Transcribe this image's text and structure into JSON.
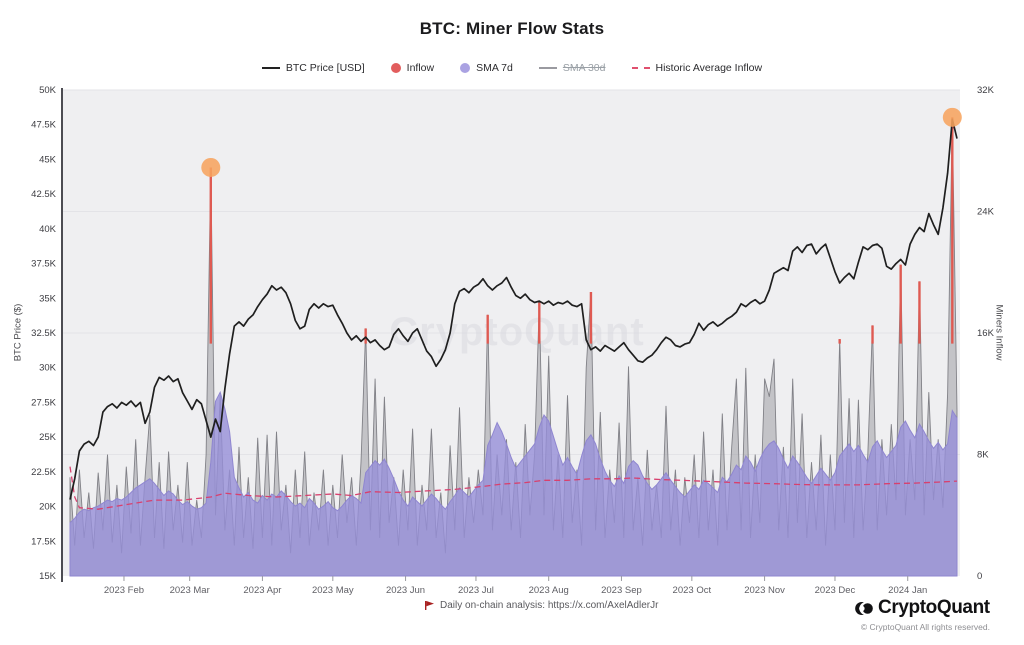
{
  "title": "BTC: Miner Flow Stats",
  "legend": {
    "items": [
      {
        "label": "BTC Price [USD]",
        "swatch": "line",
        "color": "#222222",
        "disabled": false
      },
      {
        "label": "Inflow",
        "swatch": "circle",
        "color": "#e25d5d",
        "disabled": false
      },
      {
        "label": "SMA 7d",
        "swatch": "circle",
        "color": "#aaa2e2",
        "disabled": false
      },
      {
        "label": "SMA 30d",
        "swatch": "line",
        "color": "#9a9aa0",
        "disabled": true
      },
      {
        "label": "Historic Average Inflow",
        "swatch": "dash",
        "color": "#e0506e",
        "disabled": false
      }
    ]
  },
  "watermark": "CryptoQuant",
  "left_axis": {
    "title": "BTC Price ($)",
    "min": 15,
    "max": 50,
    "tick_step": 2.5,
    "tick_labels": [
      "15K",
      "17.5K",
      "20K",
      "22.5K",
      "25K",
      "27.5K",
      "30K",
      "32.5K",
      "35K",
      "37.5K",
      "40K",
      "42.5K",
      "45K",
      "47.5K",
      "50K"
    ]
  },
  "right_axis": {
    "title": "Miners Inflow",
    "min": 0,
    "max": 32,
    "tick_values": [
      0,
      8,
      16,
      24,
      32
    ],
    "tick_labels": [
      "0",
      "8K",
      "16K",
      "24K",
      "32K"
    ]
  },
  "x_axis": {
    "start_date": "2023-01-09",
    "step_days": 2,
    "total_days": 378,
    "month_ticks": [
      {
        "label": "2023 Feb",
        "day": 23
      },
      {
        "label": "2023 Mar",
        "day": 51
      },
      {
        "label": "2023 Apr",
        "day": 82
      },
      {
        "label": "2023 May",
        "day": 112
      },
      {
        "label": "2023 Jun",
        "day": 143
      },
      {
        "label": "2023 Jul",
        "day": 173
      },
      {
        "label": "2023 Aug",
        "day": 204
      },
      {
        "label": "2023 Sep",
        "day": 235
      },
      {
        "label": "2023 Oct",
        "day": 265
      },
      {
        "label": "2023 Nov",
        "day": 296
      },
      {
        "label": "2023 Dec",
        "day": 326
      },
      {
        "label": "2024 Jan",
        "day": 357
      }
    ]
  },
  "footer": {
    "note": "Daily on-chain analysis: https://x.com/AxelAdlerJr",
    "note_icon": "red-flag",
    "brand": "CryptoQuant",
    "copyright": "© CryptoQuant All rights reserved."
  },
  "chart_data": {
    "type": "line+area",
    "plot_bg": "#efeff1",
    "grid_color": "#e3e3e7",
    "red_threshold": 15.3,
    "series": [
      {
        "name": "BTC Price [USD]",
        "type": "line",
        "axis": "left",
        "unit": "K USD",
        "color": "#1f1f1f",
        "values": [
          20.5,
          22.0,
          24.0,
          24.5,
          24.7,
          24.4,
          25.0,
          26.8,
          27.2,
          27.4,
          27.1,
          27.5,
          27.3,
          27.6,
          27.2,
          27.5,
          26.0,
          26.8,
          28.6,
          29.3,
          29.1,
          29.4,
          29.0,
          29.2,
          28.2,
          27.6,
          27.0,
          27.7,
          27.4,
          26.2,
          25.0,
          26.3,
          25.4,
          28.5,
          31.0,
          33.0,
          33.3,
          33.0,
          33.5,
          33.8,
          34.4,
          34.9,
          35.3,
          35.9,
          35.6,
          35.8,
          35.4,
          34.6,
          33.4,
          32.8,
          33.0,
          34.2,
          34.6,
          34.3,
          34.6,
          34.4,
          34.5,
          33.8,
          33.2,
          32.5,
          32.0,
          32.3,
          31.9,
          32.2,
          31.8,
          32.0,
          31.6,
          31.3,
          31.5,
          32.4,
          32.8,
          32.3,
          31.9,
          32.5,
          32.8,
          32.0,
          31.2,
          30.8,
          30.1,
          30.6,
          31.3,
          32.5,
          34.6,
          35.5,
          35.7,
          35.4,
          35.8,
          36.0,
          36.4,
          35.9,
          35.6,
          35.9,
          36.1,
          36.5,
          35.8,
          35.2,
          35.0,
          35.3,
          34.9,
          34.7,
          34.8,
          34.6,
          34.8,
          34.5,
          34.7,
          34.6,
          34.8,
          34.5,
          34.4,
          34.6,
          32.0,
          31.3,
          31.5,
          31.2,
          31.6,
          31.4,
          31.2,
          31.5,
          31.8,
          31.3,
          30.9,
          30.5,
          30.4,
          30.7,
          30.9,
          31.3,
          31.8,
          32.2,
          32.0,
          31.6,
          31.5,
          31.7,
          31.8,
          32.4,
          33.2,
          32.7,
          33.1,
          33.3,
          33.0,
          33.2,
          33.5,
          33.7,
          34.0,
          34.6,
          34.4,
          34.7,
          34.9,
          34.6,
          34.8,
          35.6,
          36.8,
          37.0,
          37.2,
          37.0,
          38.4,
          38.7,
          38.3,
          38.8,
          38.9,
          38.2,
          38.6,
          38.9,
          37.9,
          36.9,
          36.1,
          36.5,
          36.8,
          36.4,
          37.6,
          38.7,
          38.5,
          38.8,
          38.9,
          38.6,
          37.3,
          37.1,
          37.5,
          37.8,
          37.4,
          38.9,
          39.6,
          40.1,
          39.8,
          41.1,
          40.3,
          39.6,
          41.5,
          44.0,
          47.9,
          46.5
        ]
      },
      {
        "name": "Inflow",
        "type": "area",
        "axis": "right",
        "unit": "K BTC",
        "fill": "rgba(158,158,164,0.55)",
        "line": "#818187",
        "red_color": "#df5a52",
        "values": [
          6.5,
          2.0,
          7.0,
          2.5,
          5.5,
          1.8,
          6.8,
          3.0,
          8.0,
          2.2,
          6.0,
          1.5,
          7.2,
          2.8,
          9.0,
          2.0,
          6.5,
          10.6,
          2.5,
          7.5,
          1.8,
          8.2,
          3.0,
          6.0,
          2.2,
          7.5,
          2.0,
          5.0,
          2.5,
          8.0,
          26.9,
          4.0,
          11.9,
          3.0,
          7.0,
          2.0,
          8.5,
          2.5,
          6.5,
          1.8,
          9.1,
          2.5,
          9.3,
          2.0,
          9.5,
          3.0,
          6.0,
          1.5,
          7.0,
          2.5,
          8.2,
          2.0,
          5.5,
          3.0,
          7.0,
          2.0,
          6.0,
          2.5,
          8.0,
          3.5,
          6.5,
          2.0,
          7.5,
          16.3,
          3.0,
          13.0,
          2.5,
          11.8,
          3.5,
          6.5,
          2.0,
          7.0,
          3.0,
          9.7,
          2.0,
          6.0,
          3.0,
          9.7,
          2.5,
          5.5,
          1.5,
          8.6,
          3.0,
          11.1,
          2.5,
          6.5,
          3.5,
          7.0,
          4.0,
          17.2,
          3.0,
          8.0,
          4.0,
          9.0,
          3.0,
          7.5,
          2.5,
          10.0,
          4.0,
          8.0,
          18.0,
          4.0,
          14.5,
          3.0,
          8.0,
          2.5,
          11.9,
          3.5,
          7.0,
          2.0,
          13.7,
          18.7,
          3.0,
          10.8,
          2.5,
          7.0,
          3.5,
          10.1,
          2.5,
          13.8,
          3.0,
          6.5,
          2.0,
          8.3,
          3.0,
          6.0,
          2.5,
          11.2,
          3.0,
          7.0,
          2.0,
          6.5,
          3.5,
          8.0,
          2.5,
          9.5,
          3.0,
          7.0,
          2.0,
          10.7,
          3.0,
          8.5,
          13.0,
          3.0,
          13.7,
          2.5,
          8.0,
          3.5,
          13.0,
          11.8,
          14.3,
          3.0,
          8.5,
          2.5,
          13.0,
          3.5,
          10.7,
          2.5,
          7.5,
          3.0,
          9.3,
          2.0,
          8.0,
          3.0,
          15.6,
          3.5,
          11.7,
          2.5,
          11.6,
          3.0,
          8.0,
          16.5,
          3.0,
          9.0,
          4.0,
          10.0,
          5.0,
          20.5,
          4.0,
          9.0,
          5.0,
          19.4,
          4.0,
          12.1,
          5.0,
          9.0,
          4.5,
          12.0,
          30.2,
          10.9
        ]
      },
      {
        "name": "SMA 7d",
        "type": "area",
        "axis": "right",
        "unit": "K BTC",
        "fill": "rgba(150,142,216,0.8)",
        "line": "#8f86d0",
        "values": [
          3.5,
          3.8,
          4.2,
          4.4,
          4.3,
          4.5,
          4.6,
          4.8,
          5.0,
          4.9,
          5.1,
          5.0,
          5.2,
          5.5,
          5.8,
          6.0,
          6.2,
          6.4,
          6.1,
          5.7,
          5.3,
          5.6,
          5.4,
          5.0,
          4.7,
          4.9,
          4.6,
          4.4,
          4.5,
          4.8,
          7.5,
          11.5,
          12.1,
          11.0,
          9.5,
          6.5,
          5.8,
          5.2,
          5.5,
          5.0,
          4.8,
          5.3,
          5.0,
          5.4,
          5.2,
          5.6,
          5.3,
          4.9,
          4.6,
          4.8,
          4.5,
          5.1,
          4.8,
          4.4,
          4.6,
          4.9,
          4.5,
          4.3,
          4.6,
          5.0,
          5.3,
          5.1,
          4.8,
          6.8,
          7.2,
          7.6,
          7.3,
          7.7,
          7.1,
          6.4,
          5.6,
          5.0,
          4.6,
          5.2,
          4.9,
          4.6,
          5.0,
          5.4,
          5.1,
          4.7,
          4.4,
          4.9,
          5.3,
          5.8,
          5.5,
          5.2,
          5.6,
          6.0,
          6.3,
          8.6,
          9.3,
          10.1,
          9.5,
          8.7,
          7.8,
          7.1,
          7.5,
          7.9,
          8.3,
          8.7,
          9.8,
          10.6,
          10.2,
          9.2,
          8.2,
          7.3,
          7.8,
          7.2,
          6.7,
          7.9,
          8.9,
          9.3,
          8.7,
          7.7,
          6.9,
          6.3,
          5.9,
          6.6,
          6.1,
          7.2,
          7.6,
          7.3,
          6.6,
          6.1,
          5.7,
          6.0,
          6.4,
          6.8,
          6.3,
          5.9,
          5.5,
          5.2,
          5.6,
          6.0,
          5.7,
          6.3,
          6.1,
          5.8,
          5.5,
          6.5,
          6.2,
          6.7,
          7.3,
          7.0,
          7.9,
          7.5,
          6.9,
          7.7,
          8.3,
          8.7,
          8.9,
          8.4,
          7.7,
          7.1,
          7.9,
          7.5,
          7.0,
          6.5,
          6.1,
          6.6,
          7.1,
          6.7,
          6.3,
          6.8,
          7.9,
          8.3,
          8.7,
          8.2,
          8.6,
          8.0,
          7.5,
          8.5,
          8.9,
          8.3,
          7.8,
          8.2,
          8.6,
          9.8,
          10.2,
          9.6,
          9.1,
          10.0,
          9.5,
          8.9,
          8.4,
          8.8,
          8.3,
          8.7,
          10.9,
          10.4
        ]
      },
      {
        "name": "Historic Average Inflow",
        "type": "dashed-line",
        "axis": "right",
        "unit": "K BTC",
        "color": "#d8406e",
        "keypoints": [
          [
            0,
            7.2
          ],
          [
            1,
            5.2
          ],
          [
            2,
            4.5
          ],
          [
            6,
            4.4
          ],
          [
            10,
            4.6
          ],
          [
            14,
            4.8
          ],
          [
            18,
            5.0
          ],
          [
            24,
            5.0
          ],
          [
            30,
            5.2
          ],
          [
            33,
            5.45
          ],
          [
            38,
            5.3
          ],
          [
            44,
            5.2
          ],
          [
            50,
            5.3
          ],
          [
            56,
            5.4
          ],
          [
            60,
            5.3
          ],
          [
            64,
            5.55
          ],
          [
            70,
            5.5
          ],
          [
            76,
            5.6
          ],
          [
            82,
            5.7
          ],
          [
            88,
            5.9
          ],
          [
            92,
            6.05
          ],
          [
            97,
            6.15
          ],
          [
            101,
            6.3
          ],
          [
            106,
            6.3
          ],
          [
            111,
            6.4
          ],
          [
            116,
            6.4
          ],
          [
            120,
            6.45
          ],
          [
            126,
            6.35
          ],
          [
            132,
            6.28
          ],
          [
            138,
            6.2
          ],
          [
            144,
            6.12
          ],
          [
            150,
            6.08
          ],
          [
            156,
            6.02
          ],
          [
            162,
            6.0
          ],
          [
            168,
            6.0
          ],
          [
            174,
            6.08
          ],
          [
            180,
            6.12
          ],
          [
            185,
            6.18
          ],
          [
            189,
            6.25
          ]
        ]
      }
    ],
    "annotations": {
      "dot_color": "#f7a45e",
      "dots": [
        {
          "index": 30,
          "value": 26.9
        },
        {
          "index": 188,
          "value": 30.2
        }
      ]
    }
  }
}
